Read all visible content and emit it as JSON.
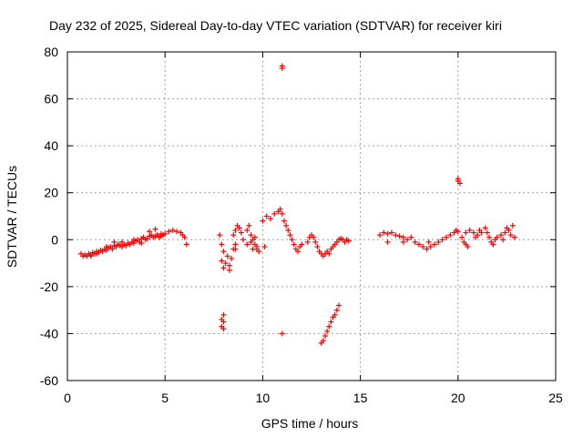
{
  "chart_data": {
    "type": "scatter",
    "title": "Day 232 of 2025, Sidereal Day-to-day VTEC variation (SDTVAR) for receiver kiri",
    "xlabel": "GPS time / hours",
    "ylabel": "SDTVAR / TECUs",
    "xlim": [
      0,
      25
    ],
    "ylim": [
      -60,
      80
    ],
    "xticks": [
      0,
      5,
      10,
      15,
      20,
      25
    ],
    "yticks": [
      -60,
      -40,
      -20,
      0,
      20,
      40,
      60,
      80
    ],
    "xtick_labels": [
      "0",
      "5",
      "10",
      "15",
      "20",
      "25"
    ],
    "ytick_labels": [
      "-60",
      "-40",
      "-20",
      "0",
      "20",
      "40",
      "60",
      "80"
    ],
    "grid": true,
    "marker": "+",
    "color": "#ff0000",
    "series": [
      {
        "name": "SDTVAR",
        "points": [
          [
            0.7,
            -6
          ],
          [
            0.8,
            -7
          ],
          [
            0.9,
            -6.5
          ],
          [
            1.0,
            -7
          ],
          [
            1.1,
            -6
          ],
          [
            1.2,
            -6.5
          ],
          [
            1.3,
            -5.5
          ],
          [
            1.4,
            -6
          ],
          [
            1.5,
            -5
          ],
          [
            1.6,
            -5.5
          ],
          [
            1.7,
            -4.5
          ],
          [
            1.8,
            -5
          ],
          [
            1.9,
            -4
          ],
          [
            2.0,
            -4.5
          ],
          [
            2.1,
            -3.5
          ],
          [
            2.2,
            -3
          ],
          [
            2.3,
            -4
          ],
          [
            2.4,
            -2.5
          ],
          [
            2.5,
            -3
          ],
          [
            2.6,
            -2
          ],
          [
            2.7,
            -2.5
          ],
          [
            2.8,
            -3
          ],
          [
            2.9,
            -2
          ],
          [
            3.0,
            -2.5
          ],
          [
            3.1,
            -1.5
          ],
          [
            3.2,
            -2
          ],
          [
            3.3,
            -1
          ],
          [
            3.4,
            -1.5
          ],
          [
            3.5,
            -0.5
          ],
          [
            3.6,
            0
          ],
          [
            3.7,
            -1
          ],
          [
            3.8,
            0.5
          ],
          [
            3.9,
            1
          ],
          [
            4.0,
            0
          ],
          [
            4.1,
            0.5
          ],
          [
            4.2,
            1.5
          ],
          [
            4.3,
            2
          ],
          [
            4.4,
            1
          ],
          [
            4.5,
            1.5
          ],
          [
            4.6,
            2
          ],
          [
            4.7,
            1
          ],
          [
            4.8,
            1.5
          ],
          [
            4.9,
            2
          ],
          [
            5.0,
            2.5
          ],
          [
            5.2,
            3.5
          ],
          [
            5.4,
            4
          ],
          [
            5.6,
            3.5
          ],
          [
            5.8,
            3
          ],
          [
            5.9,
            2
          ],
          [
            6.0,
            1
          ],
          [
            6.1,
            -2
          ],
          [
            1.2,
            -7
          ],
          [
            1.5,
            -6
          ],
          [
            2.0,
            -3
          ],
          [
            2.4,
            -1
          ],
          [
            2.8,
            -1
          ],
          [
            3.4,
            0
          ],
          [
            3.8,
            -1.5
          ],
          [
            4.2,
            3.5
          ],
          [
            4.5,
            4.5
          ],
          [
            4.8,
            2.5
          ],
          [
            7.8,
            2
          ],
          [
            7.9,
            -2
          ],
          [
            8.0,
            -5
          ],
          [
            7.9,
            -9
          ],
          [
            8.0,
            -12
          ],
          [
            8.1,
            -10
          ],
          [
            8.2,
            -7
          ],
          [
            8.3,
            -11
          ],
          [
            8.4,
            -8
          ],
          [
            8.5,
            -4
          ],
          [
            8.3,
            -13
          ],
          [
            8.5,
            2
          ],
          [
            8.6,
            4
          ],
          [
            8.7,
            6
          ],
          [
            8.8,
            5
          ],
          [
            8.9,
            3
          ],
          [
            9.0,
            0
          ],
          [
            8.6,
            -2
          ],
          [
            8.6,
            -4
          ],
          [
            9.2,
            4
          ],
          [
            9.3,
            6
          ],
          [
            9.4,
            2
          ],
          [
            9.5,
            0
          ],
          [
            9.6,
            -2
          ],
          [
            9.7,
            -4
          ],
          [
            9.8,
            -5
          ],
          [
            9.7,
            -3
          ],
          [
            10.0,
            8
          ],
          [
            10.2,
            10
          ],
          [
            10.4,
            9
          ],
          [
            10.6,
            11
          ],
          [
            10.8,
            12
          ],
          [
            10.9,
            13
          ],
          [
            11.0,
            11
          ],
          [
            11.1,
            8
          ],
          [
            11.2,
            6
          ],
          [
            11.3,
            4
          ],
          [
            11.4,
            2
          ],
          [
            11.5,
            0
          ],
          [
            11.6,
            -2
          ],
          [
            11.7,
            -4
          ],
          [
            11.8,
            -5
          ],
          [
            11.9,
            -3
          ],
          [
            12.0,
            -2
          ],
          [
            9.2,
            -2
          ],
          [
            9.4,
            -1
          ],
          [
            9.6,
            1
          ],
          [
            10.1,
            -3
          ],
          [
            9.5,
            -4
          ],
          [
            12.3,
            -1
          ],
          [
            12.4,
            1
          ],
          [
            12.5,
            2
          ],
          [
            12.6,
            1
          ],
          [
            12.7,
            -1
          ],
          [
            12.8,
            -3
          ],
          [
            12.9,
            -5
          ],
          [
            13.0,
            -6
          ],
          [
            13.1,
            -7
          ],
          [
            13.2,
            -6
          ],
          [
            13.3,
            -5
          ],
          [
            13.4,
            -6
          ],
          [
            13.5,
            -4
          ],
          [
            13.6,
            -3
          ],
          [
            13.7,
            -2
          ],
          [
            13.8,
            -1
          ],
          [
            13.9,
            0
          ],
          [
            14.0,
            0.5
          ],
          [
            14.1,
            0
          ],
          [
            14.2,
            -1
          ],
          [
            14.3,
            0
          ],
          [
            14.4,
            -0.5
          ],
          [
            16.0,
            2
          ],
          [
            16.2,
            3
          ],
          [
            16.4,
            2.5
          ],
          [
            16.6,
            3
          ],
          [
            16.8,
            2
          ],
          [
            17.0,
            1.5
          ],
          [
            17.2,
            1
          ],
          [
            17.4,
            0
          ],
          [
            17.6,
            1
          ],
          [
            17.8,
            -1
          ],
          [
            18.0,
            -2
          ],
          [
            18.2,
            -3
          ],
          [
            18.4,
            -4
          ],
          [
            18.6,
            -3
          ],
          [
            18.8,
            -2
          ],
          [
            19.0,
            -1
          ],
          [
            19.2,
            0
          ],
          [
            19.4,
            1
          ],
          [
            19.6,
            2
          ],
          [
            19.8,
            3
          ],
          [
            19.9,
            4
          ],
          [
            20.0,
            3.5
          ],
          [
            20.2,
            1
          ],
          [
            20.3,
            -1
          ],
          [
            20.4,
            -2
          ],
          [
            20.5,
            -3
          ],
          [
            20.4,
            3
          ],
          [
            20.6,
            4
          ],
          [
            20.8,
            3
          ],
          [
            21.0,
            2
          ],
          [
            21.1,
            4
          ],
          [
            21.2,
            3
          ],
          [
            21.4,
            5
          ],
          [
            21.5,
            3
          ],
          [
            21.6,
            1
          ],
          [
            21.7,
            -1
          ],
          [
            21.8,
            -2
          ],
          [
            21.9,
            0
          ],
          [
            22.0,
            1
          ],
          [
            22.2,
            2
          ],
          [
            22.4,
            3
          ],
          [
            22.5,
            5
          ],
          [
            22.6,
            4
          ],
          [
            22.7,
            2
          ],
          [
            22.8,
            6
          ],
          [
            22.9,
            1
          ],
          [
            16.4,
            -1
          ],
          [
            17.2,
            -1
          ],
          [
            18.5,
            -1
          ],
          [
            20.9,
            1
          ],
          [
            22.3,
            0
          ],
          [
            8.0,
            -32
          ],
          [
            7.9,
            -34
          ],
          [
            8.0,
            -35
          ],
          [
            7.9,
            -37
          ],
          [
            8.0,
            -38
          ],
          [
            11.0,
            74
          ],
          [
            11.0,
            73
          ],
          [
            20.0,
            26
          ],
          [
            20.0,
            25
          ],
          [
            20.1,
            24
          ],
          [
            11.0,
            -40
          ],
          [
            13.0,
            -44
          ],
          [
            13.1,
            -43
          ],
          [
            13.2,
            -41
          ],
          [
            13.3,
            -39
          ],
          [
            13.4,
            -37
          ],
          [
            13.5,
            -35
          ],
          [
            13.6,
            -33
          ],
          [
            13.7,
            -32
          ],
          [
            13.8,
            -30
          ],
          [
            13.9,
            -28
          ]
        ]
      }
    ]
  }
}
